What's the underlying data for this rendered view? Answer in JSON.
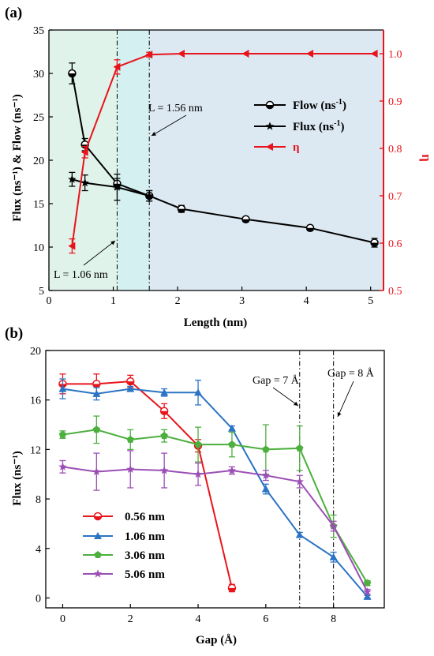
{
  "chart_data": [
    {
      "panel_label": "(a)",
      "type": "line",
      "xlabel": "Length (nm)",
      "ylabel": "Flux (ns⁻¹) & Flow (ns⁻¹)",
      "y2label": "η",
      "xlim": [
        0,
        5.2
      ],
      "ylim": [
        5,
        35
      ],
      "y2lim": [
        0.5,
        1.05
      ],
      "xticks": [
        "0",
        "1",
        "2",
        "3",
        "4",
        "5"
      ],
      "yticks": [
        "5",
        "10",
        "15",
        "20",
        "25",
        "30",
        "35"
      ],
      "y2ticks": [
        "0.5",
        "0.6",
        "0.7",
        "0.8",
        "0.9",
        "1.0"
      ],
      "shaded_regions": [
        {
          "from": 0,
          "to": 1.06,
          "color": "#e0f3ea"
        },
        {
          "from": 1.06,
          "to": 1.56,
          "color": "#d4f0f0"
        },
        {
          "from": 1.56,
          "to": 5.2,
          "color": "#dce8f2"
        }
      ],
      "vlines": [
        1.06,
        1.56
      ],
      "annotations": [
        {
          "text": "L = 1.56 nm",
          "x": 2.55,
          "y": 26.2
        },
        {
          "text": "L = 1.06 nm",
          "x": 0.75,
          "y": 6.6
        }
      ],
      "legend": [
        {
          "label": "Flow (ns",
          "sup": "-1",
          "tail": ")",
          "marker": "circle-half",
          "color": "#000000"
        },
        {
          "label": "Flux (ns",
          "sup": "-1",
          "tail": ")",
          "marker": "star",
          "color": "#000000"
        },
        {
          "label": "η",
          "sup": "",
          "tail": "",
          "marker": "triangle-left",
          "color": "#e8141b"
        }
      ],
      "series": [
        {
          "name": "Flow (ns-1)",
          "axis": "left",
          "color": "#000000",
          "marker": "circle-half",
          "x": [
            0.36,
            0.56,
            1.06,
            1.56,
            2.06,
            3.06,
            4.06,
            5.06
          ],
          "y": [
            30.0,
            21.8,
            17.3,
            15.9,
            14.4,
            13.2,
            12.2,
            10.5
          ],
          "err": [
            1.2,
            0.7,
            0.6,
            0.6,
            0.4,
            0.3,
            0.3,
            0.5
          ]
        },
        {
          "name": "Flux (ns-1)",
          "axis": "left",
          "color": "#000000",
          "marker": "star",
          "x": [
            0.36,
            0.56,
            1.06,
            1.56
          ],
          "y": [
            17.8,
            17.4,
            16.9,
            15.9
          ],
          "err": [
            0.8,
            0.9,
            1.5,
            0.6
          ]
        },
        {
          "name": "η",
          "axis": "right",
          "color": "#e8141b",
          "marker": "triangle-left",
          "x": [
            0.36,
            0.56,
            1.06,
            1.56,
            2.06,
            3.06,
            4.06,
            5.06
          ],
          "y": [
            0.594,
            0.792,
            0.972,
            0.998,
            1.0,
            1.0,
            1.0,
            1.0
          ],
          "err": [
            0.015,
            0.012,
            0.015,
            0.005,
            0.0,
            0.0,
            0.0,
            0.0
          ]
        }
      ]
    },
    {
      "panel_label": "(b)",
      "type": "line",
      "xlabel": "Gap (Å)",
      "ylabel": "Flux (ns⁻¹)",
      "xlim": [
        -0.5,
        9.5
      ],
      "ylim": [
        -0.8,
        20
      ],
      "xticks": [
        "0",
        "2",
        "4",
        "6",
        "8"
      ],
      "yticks": [
        "0",
        "4",
        "8",
        "12",
        "16",
        "20"
      ],
      "vlines": [
        7,
        8
      ],
      "annotations": [
        {
          "text": "Gap = 7 Å",
          "x": 6.0,
          "y": 17.5
        },
        {
          "text": "Gap = 8 Å",
          "x": 8.0,
          "y": 18.3
        }
      ],
      "legend": [
        {
          "label": "0.56 nm",
          "marker": "circle-half",
          "color": "#e8141b"
        },
        {
          "label": "1.06 nm",
          "marker": "triangle-up",
          "color": "#2b73c4"
        },
        {
          "label": "3.06 nm",
          "marker": "pentagon",
          "color": "#4caf3e"
        },
        {
          "label": "5.06 nm",
          "marker": "star",
          "color": "#9b4fb5"
        }
      ],
      "series": [
        {
          "name": "0.56 nm",
          "color": "#e8141b",
          "marker": "circle-half",
          "x": [
            0,
            1,
            2,
            3,
            4,
            5
          ],
          "y": [
            17.3,
            17.3,
            17.5,
            15.1,
            12.3,
            0.8
          ],
          "err": [
            0.8,
            0.8,
            0.5,
            0.6,
            0.5,
            0.3
          ]
        },
        {
          "name": "1.06 nm",
          "color": "#2b73c4",
          "marker": "triangle-up",
          "x": [
            0,
            1,
            2,
            3,
            4,
            5,
            6,
            7,
            8,
            9
          ],
          "y": [
            16.9,
            16.5,
            16.9,
            16.6,
            16.6,
            13.7,
            8.8,
            5.1,
            3.3,
            0.1
          ],
          "err": [
            0.8,
            0.5,
            0.2,
            0.3,
            1.0,
            0.2,
            0.4,
            0.2,
            0.4,
            0.1
          ]
        },
        {
          "name": "3.06 nm",
          "color": "#4caf3e",
          "marker": "pentagon",
          "x": [
            0,
            1,
            2,
            3,
            4,
            5,
            6,
            7,
            8,
            9
          ],
          "y": [
            13.2,
            13.6,
            12.8,
            13.1,
            12.4,
            12.4,
            12.0,
            12.1,
            5.8,
            1.2
          ],
          "err": [
            0.3,
            1.1,
            0.8,
            0.5,
            1.4,
            1.0,
            2.0,
            1.8,
            0.9,
            0.2
          ]
        },
        {
          "name": "5.06 nm",
          "color": "#9b4fb5",
          "marker": "star",
          "x": [
            0,
            1,
            2,
            3,
            4,
            5,
            6,
            7,
            8,
            9
          ],
          "y": [
            10.6,
            10.2,
            10.4,
            10.3,
            10.0,
            10.3,
            9.9,
            9.4,
            5.8,
            0.5
          ],
          "err": [
            0.5,
            1.5,
            1.5,
            1.4,
            0.9,
            0.3,
            0.4,
            0.5,
            0.4,
            0.2
          ]
        }
      ]
    }
  ]
}
